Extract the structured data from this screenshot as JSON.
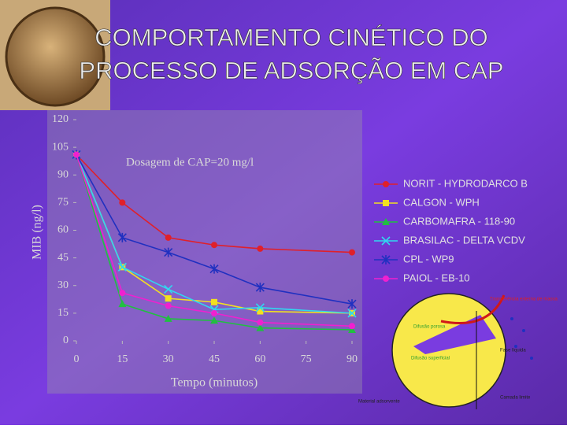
{
  "slide": {
    "title_lines": [
      "COMPORTAMENTO CINÉTICO DO",
      "PROCESSO DE ADSORÇÃO EM CAP"
    ]
  },
  "chart_data": {
    "type": "line",
    "annotation": "Dosagem de CAP=20 mg/l",
    "y_label": "MIB (ng/l)",
    "x_label": "Tempo (minutos)",
    "x": [
      0,
      15,
      30,
      45,
      60,
      90
    ],
    "xlim": [
      0,
      90
    ],
    "xticks": [
      0,
      15,
      30,
      45,
      60,
      75,
      90
    ],
    "ylim": [
      0,
      120
    ],
    "yticks": [
      0,
      15,
      30,
      45,
      60,
      75,
      90,
      105,
      120
    ],
    "series": [
      {
        "name": "NORIT - HYDRODARCO B",
        "color": "#e0202a",
        "marker": "circle",
        "values": [
          101,
          75,
          56,
          52,
          50,
          48
        ]
      },
      {
        "name": "CALGON - WPH",
        "color": "#f2e020",
        "marker": "square",
        "values": [
          101,
          40,
          23,
          21,
          16,
          15
        ]
      },
      {
        "name": "CARBOMAFRA - 118-90",
        "color": "#20c040",
        "marker": "triangle",
        "values": [
          101,
          20,
          12,
          11,
          7,
          6
        ]
      },
      {
        "name": "BRASILAC - DELTA VCDV",
        "color": "#30d8f0",
        "marker": "x",
        "values": [
          101,
          40,
          28,
          17,
          18,
          15
        ]
      },
      {
        "name": "CPL - WP9",
        "color": "#2030c0",
        "marker": "star",
        "values": [
          101,
          56,
          48,
          39,
          29,
          20
        ]
      },
      {
        "name": "PAIOL - EB-10",
        "color": "#f020d0",
        "marker": "circle",
        "values": [
          101,
          26,
          19,
          15,
          10,
          8
        ]
      }
    ]
  },
  "diagram": {
    "labels": [
      "Transferência externa de massa",
      "Difusão porosa",
      "Difusão superficial",
      "Fase líquida",
      "Material adsorvente",
      "Camada limite"
    ]
  }
}
